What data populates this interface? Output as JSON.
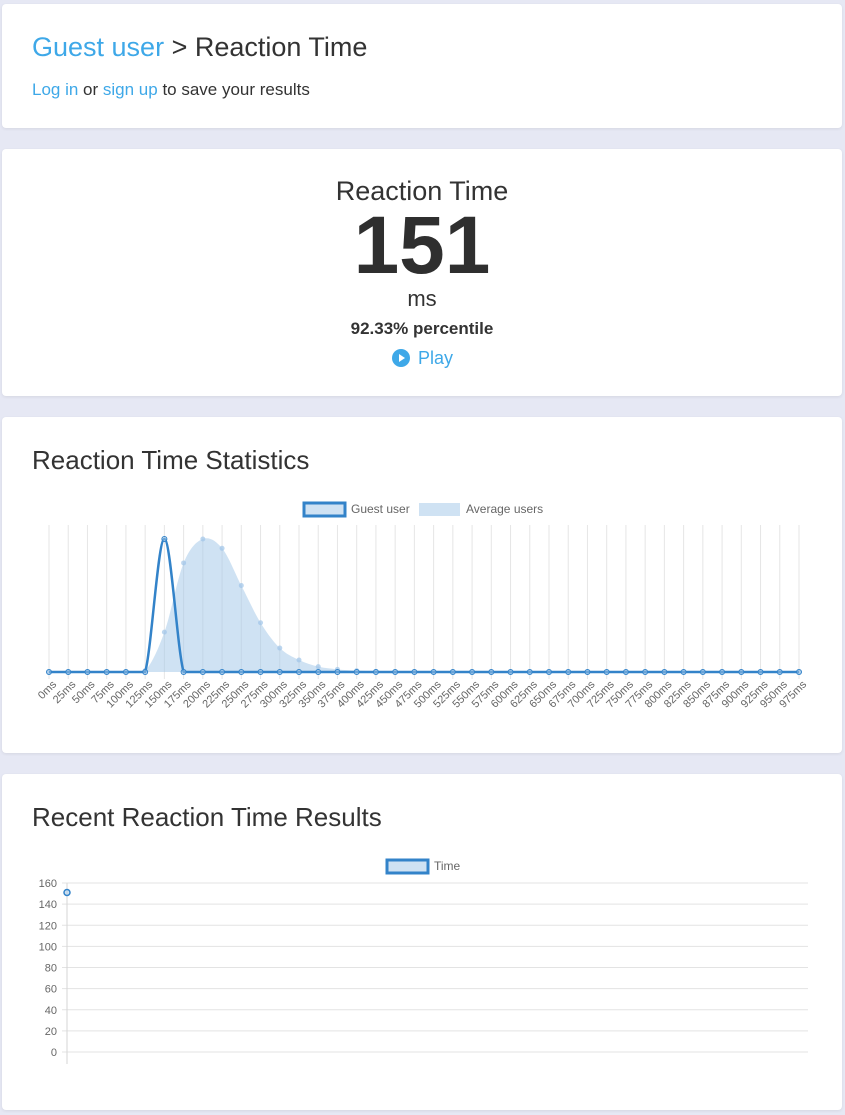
{
  "breadcrumb": {
    "user": "Guest user",
    "separator": " > ",
    "page": "Reaction Time"
  },
  "login_prompt": {
    "login": "Log in",
    "or": " or ",
    "signup": "sign up",
    "rest": " to save your results"
  },
  "score": {
    "title": "Reaction Time",
    "value": "151",
    "unit": "ms",
    "percentile": "92.33% percentile",
    "play_label": "Play"
  },
  "stats_title": "Reaction Time Statistics",
  "recent_title": "Recent Reaction Time Results",
  "colors": {
    "accent": "#3ea8e8",
    "series_line": "#3383c9",
    "series_fill": "rgba(159,197,232,0.5)"
  },
  "chart_data": [
    {
      "type": "area",
      "title": "Reaction Time Statistics",
      "categories": [
        "0ms",
        "25ms",
        "50ms",
        "75ms",
        "100ms",
        "125ms",
        "150ms",
        "175ms",
        "200ms",
        "225ms",
        "250ms",
        "275ms",
        "300ms",
        "325ms",
        "350ms",
        "375ms",
        "400ms",
        "425ms",
        "450ms",
        "475ms",
        "500ms",
        "525ms",
        "550ms",
        "575ms",
        "600ms",
        "625ms",
        "650ms",
        "675ms",
        "700ms",
        "725ms",
        "750ms",
        "775ms",
        "800ms",
        "825ms",
        "850ms",
        "875ms",
        "900ms",
        "925ms",
        "950ms",
        "975ms"
      ],
      "series": [
        {
          "name": "Guest user",
          "values": [
            0,
            0,
            0,
            0,
            0,
            0,
            100,
            0,
            0,
            0,
            0,
            0,
            0,
            0,
            0,
            0,
            0,
            0,
            0,
            0,
            0,
            0,
            0,
            0,
            0,
            0,
            0,
            0,
            0,
            0,
            0,
            0,
            0,
            0,
            0,
            0,
            0,
            0,
            0,
            0
          ]
        },
        {
          "name": "Average users",
          "values": [
            0,
            0,
            0,
            0,
            0,
            1,
            30,
            82,
            100,
            93,
            65,
            37,
            18,
            9,
            4,
            2,
            1,
            0.5,
            0,
            0,
            0,
            0,
            0,
            0,
            0,
            0,
            0,
            0,
            0,
            0,
            0,
            0,
            0,
            0,
            0,
            0,
            0,
            0,
            0,
            0
          ]
        }
      ],
      "legend": "top-center",
      "grid": "vertical"
    },
    {
      "type": "line",
      "title": "Recent Reaction Time Results",
      "series": [
        {
          "name": "Time",
          "values": [
            151
          ]
        }
      ],
      "yticks": [
        "160",
        "140",
        "120",
        "100",
        "80",
        "60",
        "40",
        "20",
        "0"
      ],
      "ylim": [
        0,
        160
      ],
      "legend": "top-center",
      "grid": "horizontal"
    }
  ]
}
